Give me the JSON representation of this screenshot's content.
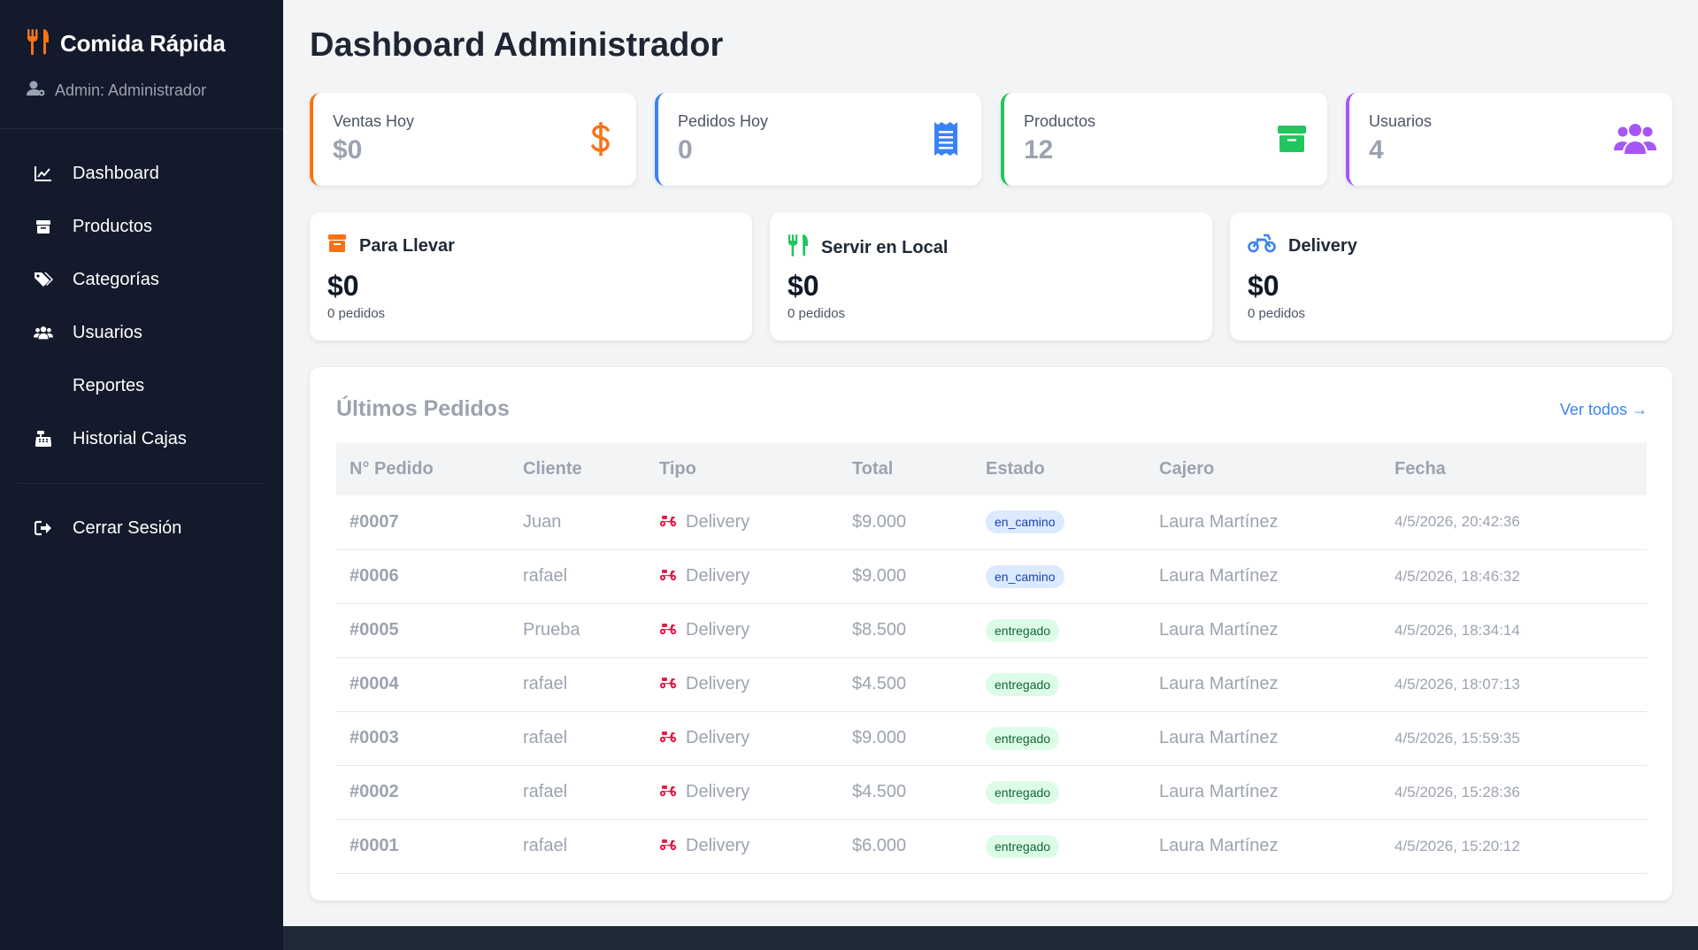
{
  "app": {
    "brand": "Comida Rápida",
    "admin_label": "Admin: Administrador"
  },
  "nav": {
    "items": [
      {
        "label": "Dashboard",
        "icon": "chart-line-icon"
      },
      {
        "label": "Productos",
        "icon": "box-icon"
      },
      {
        "label": "Categorías",
        "icon": "tags-icon"
      },
      {
        "label": "Usuarios",
        "icon": "users-icon"
      },
      {
        "label": "Reportes",
        "icon": ""
      },
      {
        "label": "Historial Cajas",
        "icon": "cash-register-icon"
      }
    ],
    "logout": "Cerrar Sesión"
  },
  "page": {
    "title": "Dashboard Administrador"
  },
  "stats": [
    {
      "label": "Ventas Hoy",
      "value": "$0",
      "color": "#f97316",
      "icon": "dollar-icon"
    },
    {
      "label": "Pedidos Hoy",
      "value": "0",
      "color": "#3b82f6",
      "icon": "receipt-icon"
    },
    {
      "label": "Productos",
      "value": "12",
      "color": "#22c55e",
      "icon": "box-icon"
    },
    {
      "label": "Usuarios",
      "value": "4",
      "color": "#a855f7",
      "icon": "users-icon"
    }
  ],
  "order_types": [
    {
      "label": "Para Llevar",
      "amount": "$0",
      "count": "0 pedidos",
      "color": "#f97316",
      "icon": "box-icon"
    },
    {
      "label": "Servir en Local",
      "amount": "$0",
      "count": "0 pedidos",
      "color": "#22c55e",
      "icon": "utensils-icon"
    },
    {
      "label": "Delivery",
      "amount": "$0",
      "count": "0 pedidos",
      "color": "#3b82f6",
      "icon": "motorcycle-icon"
    }
  ],
  "orders": {
    "title": "Últimos Pedidos",
    "view_all": "Ver todos →",
    "columns": [
      "N° Pedido",
      "Cliente",
      "Tipo",
      "Total",
      "Estado",
      "Cajero",
      "Fecha"
    ],
    "rows": [
      {
        "num": "#0007",
        "cliente": "Juan",
        "tipo": "Delivery",
        "total": "$9.000",
        "estado": "en_camino",
        "cajero": "Laura Martínez",
        "fecha": "4/5/2026, 20:42:36"
      },
      {
        "num": "#0006",
        "cliente": "rafael",
        "tipo": "Delivery",
        "total": "$9.000",
        "estado": "en_camino",
        "cajero": "Laura Martínez",
        "fecha": "4/5/2026, 18:46:32"
      },
      {
        "num": "#0005",
        "cliente": "Prueba",
        "tipo": "Delivery",
        "total": "$8.500",
        "estado": "entregado",
        "cajero": "Laura Martínez",
        "fecha": "4/5/2026, 18:34:14"
      },
      {
        "num": "#0004",
        "cliente": "rafael",
        "tipo": "Delivery",
        "total": "$4.500",
        "estado": "entregado",
        "cajero": "Laura Martínez",
        "fecha": "4/5/2026, 18:07:13"
      },
      {
        "num": "#0003",
        "cliente": "rafael",
        "tipo": "Delivery",
        "total": "$9.000",
        "estado": "entregado",
        "cajero": "Laura Martínez",
        "fecha": "4/5/2026, 15:59:35"
      },
      {
        "num": "#0002",
        "cliente": "rafael",
        "tipo": "Delivery",
        "total": "$4.500",
        "estado": "entregado",
        "cajero": "Laura Martínez",
        "fecha": "4/5/2026, 15:28:36"
      },
      {
        "num": "#0001",
        "cliente": "rafael",
        "tipo": "Delivery",
        "total": "$6.000",
        "estado": "entregado",
        "cajero": "Laura Martínez",
        "fecha": "4/5/2026, 15:20:12"
      }
    ]
  },
  "colors": {
    "sidebar_bg": "#131a2b",
    "accent_orange": "#f97316",
    "link_blue": "#3b82f6",
    "scooter_red": "#e11d48"
  }
}
